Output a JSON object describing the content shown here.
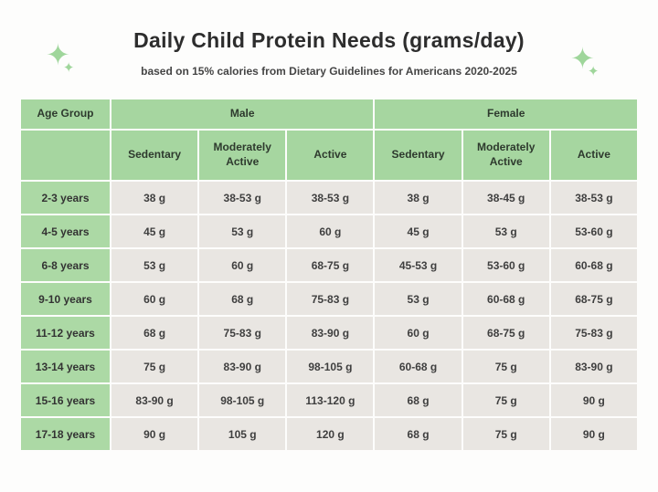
{
  "page": {
    "title": "Daily Child Protein Needs (grams/day)",
    "subtitle": "based on 15% calories from Dietary Guidelines for Americans 2020-2025"
  },
  "icons": {
    "sparkle": "✦"
  },
  "colors": {
    "header_green": "#a6d6a0",
    "age_column_green": "#acd9a5",
    "data_cell_gray": "#e9e6e2",
    "sparkle_green": "#9fd69b",
    "title_text": "#2d2d2d",
    "background": "#fdfdfc"
  },
  "chart_data": {
    "type": "table",
    "title": "Daily Child Protein Needs (grams/day)",
    "subtitle": "based on 15% calories from Dietary Guidelines for Americans 2020-2025",
    "units": "grams per day",
    "corner_header": "Age Group",
    "group_labels": [
      "Male",
      "Female"
    ],
    "sub_headers": [
      "Sedentary",
      "Moderately Active",
      "Active",
      "Sedentary",
      "Moderately Active",
      "Active"
    ],
    "categories": [
      "2-3 years",
      "4-5 years",
      "6-8 years",
      "9-10 years",
      "11-12 years",
      "13-14 years",
      "15-16 years",
      "17-18 years"
    ],
    "rows": [
      {
        "age": "2-3 years",
        "values": [
          "38 g",
          "38-53 g",
          "38-53 g",
          "38 g",
          "38-45 g",
          "38-53 g"
        ]
      },
      {
        "age": "4-5 years",
        "values": [
          "45 g",
          "53 g",
          "60 g",
          "45 g",
          "53 g",
          "53-60 g"
        ]
      },
      {
        "age": "6-8 years",
        "values": [
          "53 g",
          "60 g",
          "68-75 g",
          "45-53 g",
          "53-60 g",
          "60-68 g"
        ]
      },
      {
        "age": "9-10 years",
        "values": [
          "60 g",
          "68 g",
          "75-83 g",
          "53 g",
          "60-68 g",
          "68-75 g"
        ]
      },
      {
        "age": "11-12 years",
        "values": [
          "68 g",
          "75-83 g",
          "83-90 g",
          "60 g",
          "68-75 g",
          "75-83 g"
        ]
      },
      {
        "age": "13-14 years",
        "values": [
          "75 g",
          "83-90 g",
          "98-105 g",
          "60-68 g",
          "75 g",
          "83-90 g"
        ]
      },
      {
        "age": "15-16 years",
        "values": [
          "83-90 g",
          "98-105 g",
          "113-120 g",
          "68 g",
          "75 g",
          "90 g"
        ]
      },
      {
        "age": "17-18 years",
        "values": [
          "90 g",
          "105 g",
          "120 g",
          "68 g",
          "75 g",
          "90 g"
        ]
      }
    ],
    "series": [
      {
        "name": "Male Sedentary",
        "values": [
          "38 g",
          "45 g",
          "53 g",
          "60 g",
          "68 g",
          "75 g",
          "83-90 g",
          "90 g"
        ]
      },
      {
        "name": "Male Moderately Active",
        "values": [
          "38-53 g",
          "53 g",
          "60 g",
          "68 g",
          "75-83 g",
          "83-90 g",
          "98-105 g",
          "105 g"
        ]
      },
      {
        "name": "Male Active",
        "values": [
          "38-53 g",
          "60 g",
          "68-75 g",
          "75-83 g",
          "83-90 g",
          "98-105 g",
          "113-120 g",
          "120 g"
        ]
      },
      {
        "name": "Female Sedentary",
        "values": [
          "38 g",
          "45 g",
          "45-53 g",
          "53 g",
          "60 g",
          "60-68 g",
          "68 g",
          "68 g"
        ]
      },
      {
        "name": "Female Moderately Active",
        "values": [
          "38-45 g",
          "53 g",
          "53-60 g",
          "60-68 g",
          "68-75 g",
          "75 g",
          "75 g",
          "75 g"
        ]
      },
      {
        "name": "Female Active",
        "values": [
          "38-53 g",
          "53-60 g",
          "60-68 g",
          "68-75 g",
          "75-83 g",
          "83-90 g",
          "90 g",
          "90 g"
        ]
      }
    ],
    "layout": {
      "grid": true,
      "gap_color": "#ffffff"
    }
  }
}
